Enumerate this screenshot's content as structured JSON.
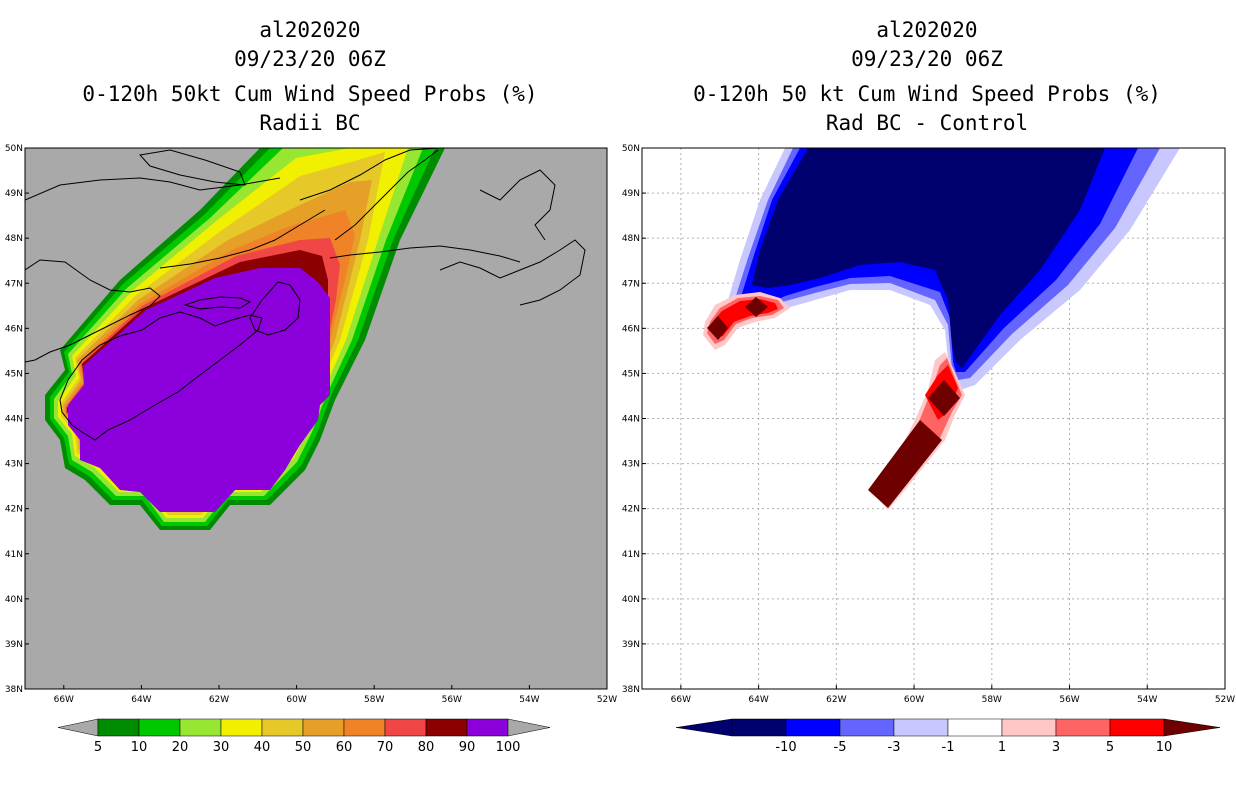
{
  "left_panel": {
    "storm_id": "al202020",
    "datetime": "09/23/20 06Z",
    "product": "0-120h 50kt Cum Wind Speed Probs (%)",
    "subtitle": "Radii BC",
    "colorbar": {
      "labels": [
        "5",
        "10",
        "20",
        "30",
        "40",
        "50",
        "60",
        "70",
        "80",
        "90",
        "100"
      ],
      "colors": [
        "#008c00",
        "#00c800",
        "#96e632",
        "#f0f000",
        "#e6c828",
        "#e6a028",
        "#f08228",
        "#f04646",
        "#8c0000",
        "#8c00dc"
      ],
      "end_color": "#a9a9a9"
    }
  },
  "right_panel": {
    "storm_id": "al202020",
    "datetime": "09/23/20 06Z",
    "product": "0-120h 50 kt Cum Wind Speed Probs (%)",
    "subtitle": "Rad BC - Control",
    "colorbar": {
      "labels": [
        "-10",
        "-5",
        "-3",
        "-1",
        "1",
        "3",
        "5",
        "10"
      ],
      "colors": [
        "#00006e",
        "#0000ff",
        "#6464ff",
        "#c8c8ff",
        "#ffffff",
        "#ffc8c8",
        "#ff6464",
        "#ff0000"
      ],
      "left_color": "#00006e",
      "right_color": "#6e0000"
    }
  },
  "map": {
    "lat_labels": [
      "50N",
      "49N",
      "48N",
      "47N",
      "46N",
      "45N",
      "44N",
      "43N",
      "42N",
      "41N",
      "40N",
      "39N",
      "38N"
    ],
    "lon_labels": [
      "66W",
      "64W",
      "62W",
      "60W",
      "58W",
      "56W",
      "54W",
      "52W"
    ],
    "background_color": "#a9a9a9"
  }
}
